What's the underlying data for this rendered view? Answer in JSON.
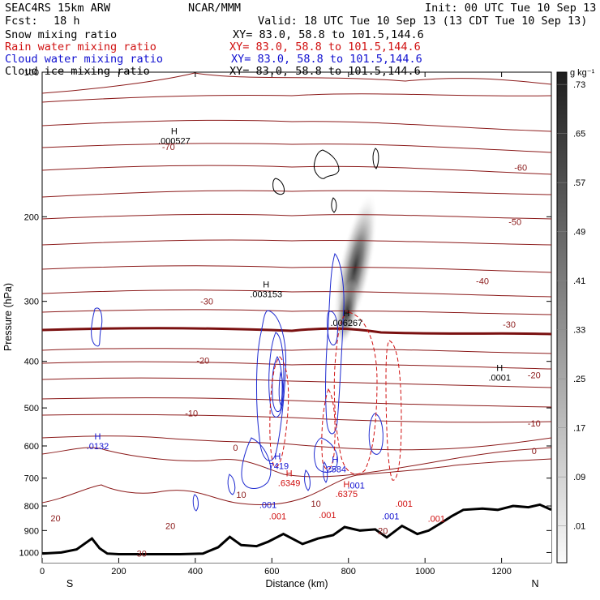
{
  "header": {
    "model": "SEAC4RS 15km ARW",
    "org": "NCAR/MMM",
    "init": "Init: 00 UTC Tue 10 Sep 13",
    "fcst_label": "Fcst:",
    "fcst_value": "18 h",
    "valid": "Valid: 18 UTC Tue 10 Sep 13 (13 CDT Tue 10 Sep 13)"
  },
  "legend": [
    {
      "label": "Snow mixing ratio",
      "xy": "XY=  83.0, 58.8 to 101.5,144.6",
      "color": "#000000"
    },
    {
      "label": "Rain water mixing ratio",
      "xy": "XY=  83.0, 58.8 to 101.5,144.6",
      "color": "#d01010"
    },
    {
      "label": "Cloud water mixing ratio",
      "xy": "XY=  83.0, 58.8 to 101.5,144.6",
      "color": "#1010d0"
    },
    {
      "label": "Cloud ice mixing ratio",
      "xy": "XY=  83.0, 58.8 to 101.5,144.6",
      "color": "#000000"
    }
  ],
  "chart_data": {
    "type": "cross-section",
    "xlabel": "Distance (km)",
    "ylabel": "Pressure (hPa)",
    "xlim": [
      0,
      1330
    ],
    "ylim": [
      1050,
      100
    ],
    "y_scale": "log",
    "x_ticks": [
      0,
      200,
      400,
      600,
      800,
      1000,
      1200
    ],
    "y_ticks": [
      100,
      200,
      300,
      400,
      500,
      600,
      700,
      800,
      900,
      1000
    ],
    "endpoints": {
      "left": "S",
      "right": "N"
    },
    "colorbar": {
      "unit": "g kg⁻¹",
      "labels": [
        ".01",
        ".09",
        ".17",
        ".25",
        ".33",
        ".41",
        ".49",
        ".57",
        ".65",
        ".73"
      ]
    },
    "temperature_contours": {
      "color": "#8b1a1a",
      "labels": [
        {
          "text": "-70",
          "x": 330,
          "p": 143
        },
        {
          "text": "-60",
          "x": 1250,
          "p": 158
        },
        {
          "text": "-50",
          "x": 1235,
          "p": 205
        },
        {
          "text": "-40",
          "x": 1150,
          "p": 272
        },
        {
          "text": "-30",
          "x": 430,
          "p": 300
        },
        {
          "text": "-30",
          "x": 1220,
          "p": 335
        },
        {
          "text": "-20",
          "x": 420,
          "p": 398
        },
        {
          "text": "-20",
          "x": 1285,
          "p": 427
        },
        {
          "text": "-10",
          "x": 390,
          "p": 513
        },
        {
          "text": "-10",
          "x": 1285,
          "p": 538
        },
        {
          "text": "0",
          "x": 505,
          "p": 605
        },
        {
          "text": "0",
          "x": 1285,
          "p": 614
        },
        {
          "text": "10",
          "x": 520,
          "p": 758
        },
        {
          "text": "10",
          "x": 715,
          "p": 790
        },
        {
          "text": "20",
          "x": 335,
          "p": 880
        },
        {
          "text": "20",
          "x": 890,
          "p": 900
        },
        {
          "text": "20",
          "x": 35,
          "p": 848
        },
        {
          "text": "30",
          "x": 260,
          "p": 1005
        }
      ]
    },
    "highs": [
      {
        "value": ".000527",
        "x": 345,
        "p": 140,
        "color": "#000000"
      },
      {
        "value": ".003153",
        "x": 585,
        "p": 292,
        "color": "#000000"
      },
      {
        "value": ".006267",
        "x": 795,
        "p": 335,
        "color": "#000000"
      },
      {
        "value": ".0001",
        "x": 1195,
        "p": 435,
        "color": "#000000"
      },
      {
        "value": ".0132",
        "x": 145,
        "p": 605,
        "color": "#1010d0"
      },
      {
        "value": ".7419",
        "x": 615,
        "p": 665,
        "color": "#1010d0"
      },
      {
        "value": ".2584",
        "x": 765,
        "p": 675,
        "color": "#1010d0"
      },
      {
        "value": ".6349",
        "x": 645,
        "p": 722,
        "color": "#d01010"
      },
      {
        "value": ".6375",
        "x": 795,
        "p": 760,
        "color": "#d01010"
      }
    ],
    "contour_labels": [
      {
        "text": ".001",
        "x": 590,
        "p": 795,
        "color": "#1010d0"
      },
      {
        "text": ".001",
        "x": 820,
        "p": 725,
        "color": "#1010d0"
      },
      {
        "text": ".001",
        "x": 910,
        "p": 840,
        "color": "#1010d0"
      },
      {
        "text": ".001",
        "x": 615,
        "p": 840,
        "color": "#d01010"
      },
      {
        "text": ".001",
        "x": 745,
        "p": 835,
        "color": "#d01010"
      },
      {
        "text": ".001",
        "x": 945,
        "p": 790,
        "color": "#d01010"
      },
      {
        "text": ".001",
        "x": 1030,
        "p": 850,
        "color": "#d01010"
      }
    ],
    "terrain_x": [
      0,
      50,
      90,
      130,
      150,
      170,
      200,
      240,
      300,
      360,
      420,
      460,
      490,
      520,
      560,
      590,
      630,
      680,
      720,
      760,
      790,
      830,
      870,
      900,
      940,
      980,
      1010,
      1040,
      1070,
      1100,
      1150,
      1190,
      1230,
      1270,
      1300,
      1330
    ],
    "terrain_p": [
      1005,
      1000,
      985,
      935,
      980,
      1005,
      1008,
      1008,
      1008,
      1008,
      1005,
      975,
      928,
      965,
      970,
      950,
      915,
      960,
      935,
      920,
      885,
      900,
      895,
      930,
      880,
      915,
      900,
      870,
      840,
      815,
      810,
      815,
      800,
      805,
      795,
      815
    ]
  }
}
